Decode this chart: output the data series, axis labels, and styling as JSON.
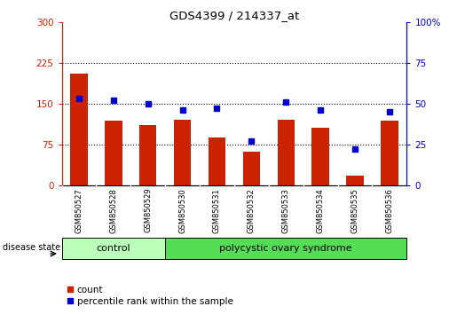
{
  "title": "GDS4399 / 214337_at",
  "samples": [
    "GSM850527",
    "GSM850528",
    "GSM850529",
    "GSM850530",
    "GSM850531",
    "GSM850532",
    "GSM850533",
    "GSM850534",
    "GSM850535",
    "GSM850536"
  ],
  "count_values": [
    205,
    118,
    110,
    120,
    88,
    62,
    120,
    105,
    18,
    118
  ],
  "percentile_values": [
    53,
    52,
    50,
    46,
    47,
    27,
    51,
    46,
    22,
    45
  ],
  "left_ylim": [
    0,
    300
  ],
  "right_ylim": [
    0,
    100
  ],
  "left_yticks": [
    0,
    75,
    150,
    225,
    300
  ],
  "right_yticks": [
    0,
    25,
    50,
    75,
    100
  ],
  "left_tick_labels": [
    "0",
    "75",
    "150",
    "225",
    "300"
  ],
  "right_tick_labels": [
    "0",
    "25",
    "50",
    "75",
    "100%"
  ],
  "bar_color": "#cc2200",
  "dot_color": "#0000cc",
  "grid_linestyle": ":",
  "grid_linewidth": 0.8,
  "control_label": "control",
  "pcos_label": "polycystic ovary syndrome",
  "disease_state_label": "disease state",
  "legend_count": "count",
  "legend_percentile": "percentile rank within the sample",
  "control_color": "#bbffbb",
  "pcos_color": "#55dd55",
  "label_band_color": "#d0d0d0",
  "bar_width": 0.5,
  "n_control": 3,
  "n_pcos": 7
}
